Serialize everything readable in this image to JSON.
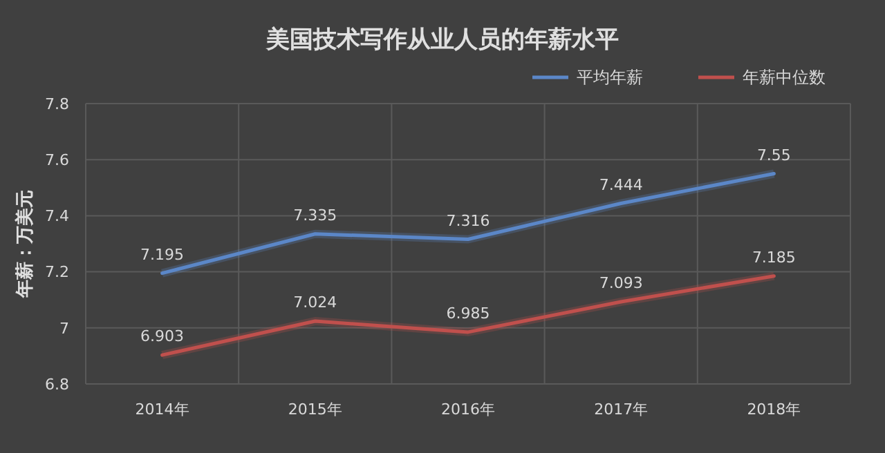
{
  "chart_data": {
    "type": "line",
    "title": "美国技术写作从业人员的年薪水平",
    "ylabel": "年薪：万美元",
    "categories": [
      "2014年",
      "2015年",
      "2016年",
      "2017年",
      "2018年"
    ],
    "series": [
      {
        "name": "平均年薪",
        "color": "#5b87c8",
        "values": [
          7.195,
          7.335,
          7.316,
          7.444,
          7.55
        ]
      },
      {
        "name": "年薪中位数",
        "color": "#c0504d",
        "values": [
          6.903,
          7.024,
          6.985,
          7.093,
          7.185
        ]
      }
    ],
    "ylim": [
      6.8,
      7.8
    ],
    "yticks": [
      6.8,
      7,
      7.2,
      7.4,
      7.6,
      7.8
    ],
    "grid": true,
    "legend": "top right",
    "data_labels": true,
    "marker": "none",
    "line_style": "solid"
  }
}
